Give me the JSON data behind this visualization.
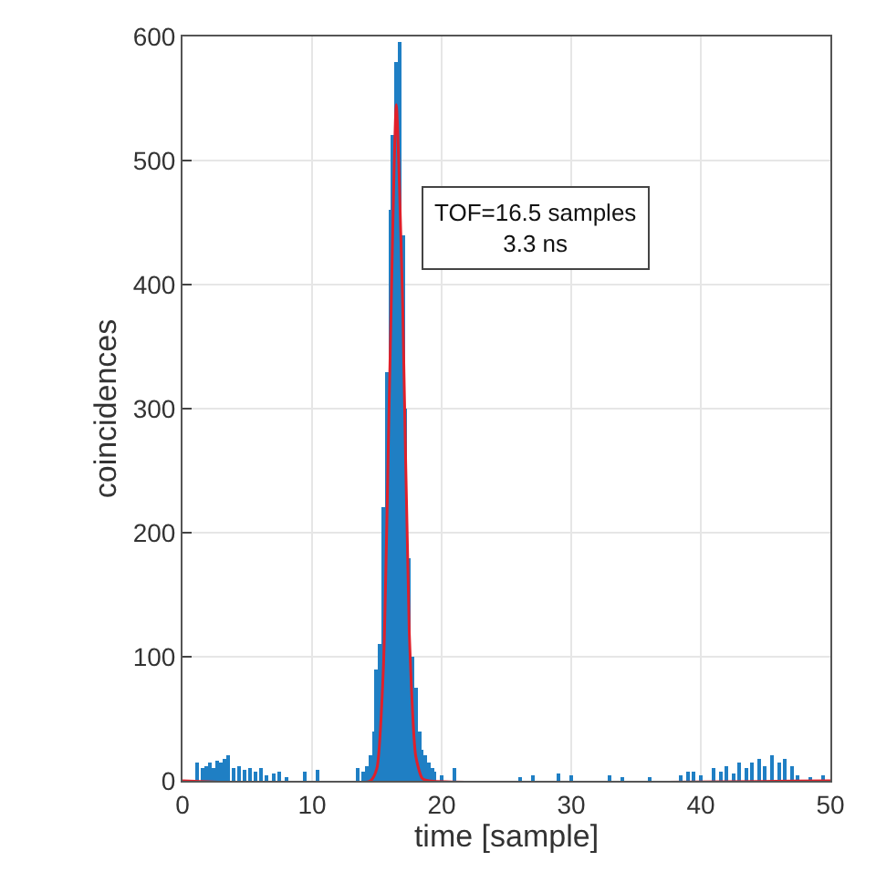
{
  "chart_data": {
    "type": "bar",
    "xlabel": "time [sample]",
    "ylabel": "coincidences",
    "xlim": [
      0,
      50
    ],
    "xticks": [
      0,
      10,
      20,
      30,
      40,
      50
    ],
    "ylim": [
      0,
      600
    ],
    "yticks": [
      0,
      100,
      200,
      300,
      400,
      500,
      600
    ],
    "grid": true,
    "annotations": [
      "TOF=16.5 samples\n3.3 ns"
    ],
    "series": [
      {
        "color": "#1f7fc4",
        "x": [
          1.2,
          1.5,
          1.8,
          2.1,
          2.4,
          2.7,
          3,
          3.3,
          3.6,
          4,
          4.4,
          4.8,
          5.2,
          5.6,
          6,
          6.5,
          7,
          7.5,
          8,
          9.5,
          10.5,
          13.5,
          14,
          14.25,
          14.5,
          14.75,
          15,
          15.25,
          15.5,
          15.75,
          16,
          16.25,
          16.5,
          16.75,
          17,
          17.25,
          17.5,
          17.75,
          18,
          18.25,
          18.5,
          18.75,
          19,
          19.25,
          19.5,
          20,
          21,
          26,
          27,
          29,
          30,
          33,
          34,
          36,
          38.5,
          39,
          39.5,
          40,
          41,
          41.5,
          42,
          42.5,
          43,
          43.5,
          44,
          44.5,
          45,
          45.5,
          46,
          46.5,
          47,
          47.5,
          48.5,
          49.5
        ],
        "values": [
          15,
          10,
          12,
          14,
          11,
          16,
          14,
          18,
          20,
          10,
          12,
          9,
          11,
          8,
          10,
          4,
          6,
          8,
          3,
          8,
          9,
          10,
          8,
          12,
          20,
          40,
          90,
          110,
          220,
          330,
          460,
          520,
          580,
          595,
          440,
          300,
          180,
          100,
          75,
          40,
          25,
          20,
          15,
          10,
          8,
          5,
          10,
          3,
          4,
          6,
          5,
          4,
          2,
          2,
          5,
          8,
          7,
          4,
          10,
          8,
          12,
          6,
          14,
          10,
          15,
          18,
          12,
          20,
          15,
          18,
          12,
          5,
          3,
          4
        ]
      },
      {
        "type": "line",
        "color": "#e0202a",
        "x": [
          0,
          14.5,
          15,
          15.5,
          16,
          16.5,
          17,
          17.5,
          18,
          18.5,
          19,
          50
        ],
        "values": [
          0,
          0,
          10,
          90,
          330,
          545,
          380,
          120,
          20,
          2,
          0,
          0
        ]
      }
    ]
  }
}
